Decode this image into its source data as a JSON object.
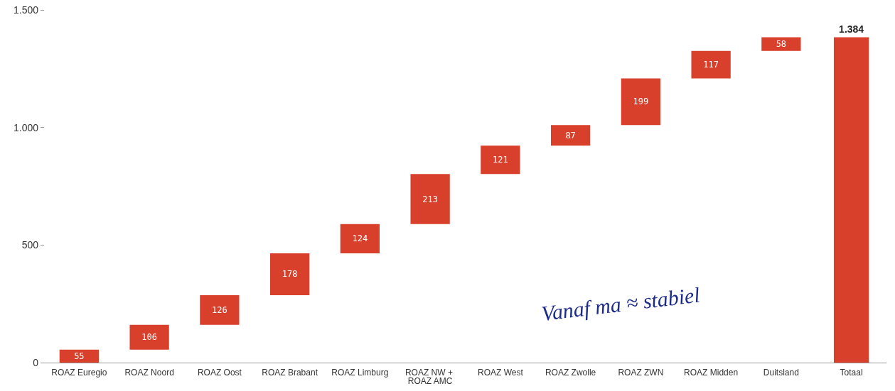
{
  "chart_data": {
    "type": "bar",
    "categories": [
      "ROAZ Euregio",
      "ROAZ Noord",
      "ROAZ Oost",
      "ROAZ Brabant",
      "ROAZ Limburg",
      "ROAZ NW + ROAZ AMC",
      "ROAZ West",
      "ROAZ Zwolle",
      "ROAZ ZWN",
      "ROAZ Midden",
      "Duitsland",
      "Totaal"
    ],
    "values": [
      55,
      106,
      126,
      178,
      124,
      213,
      121,
      87,
      199,
      117,
      58,
      1384
    ],
    "base": [
      0,
      55,
      161,
      287,
      465,
      589,
      802,
      923,
      1010,
      1209,
      1326,
      null
    ],
    "value_labels": [
      "55",
      "106",
      "126",
      "178",
      "124",
      "213",
      "121",
      "87",
      "199",
      "117",
      "58",
      "1.384"
    ],
    "color": "#d8402c",
    "ylim": [
      0,
      1500
    ],
    "yticks": [
      0,
      500,
      {
        "value": 1000,
        "label": "1.000"
      },
      {
        "value": 1500,
        "label": "1.500"
      }
    ],
    "grid": false,
    "annotations": [
      "Vanaf ma ≈ stabiel"
    ]
  }
}
